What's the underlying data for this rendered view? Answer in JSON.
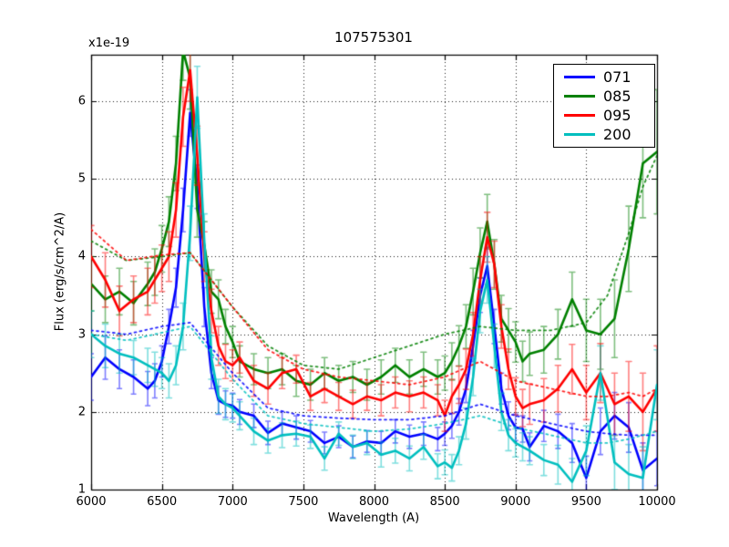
{
  "chart_data": {
    "type": "line",
    "title": "107575301",
    "xlabel": "Wavelength (A)",
    "ylabel": "Flux (erg/s/cm^2/A)",
    "offset_label": "x1e-19",
    "xlim": [
      6000,
      10000
    ],
    "ylim": [
      1,
      6.6
    ],
    "xticks": [
      "6000",
      "6500",
      "7000",
      "7500",
      "8000",
      "8500",
      "9000",
      "9500",
      "10000"
    ],
    "xtick_values": [
      6000,
      6500,
      7000,
      7500,
      8000,
      8500,
      9000,
      9500,
      10000
    ],
    "yticks": [
      "1",
      "2",
      "3",
      "4",
      "5",
      "6"
    ],
    "ytick_values": [
      1,
      2,
      3,
      4,
      5,
      6
    ],
    "grid": true,
    "legend_position": "upper right",
    "x": [
      6000,
      6100,
      6200,
      6300,
      6400,
      6450,
      6500,
      6550,
      6600,
      6650,
      6700,
      6750,
      6800,
      6850,
      6900,
      6950,
      7000,
      7050,
      7150,
      7250,
      7350,
      7450,
      7550,
      7650,
      7750,
      7850,
      7950,
      8050,
      8150,
      8250,
      8350,
      8450,
      8500,
      8550,
      8600,
      8650,
      8700,
      8750,
      8800,
      8850,
      8900,
      8950,
      9000,
      9050,
      9100,
      9200,
      9300,
      9400,
      9500,
      9600,
      9700,
      9800,
      9900,
      10000
    ],
    "series": [
      {
        "name": "071",
        "color": "#0000ff",
        "values": [
          2.45,
          2.7,
          2.55,
          2.45,
          2.3,
          2.4,
          2.65,
          3.1,
          3.6,
          4.6,
          5.85,
          4.9,
          3.35,
          2.5,
          2.15,
          2.1,
          2.08,
          2.0,
          1.95,
          1.73,
          1.85,
          1.8,
          1.75,
          1.6,
          1.68,
          1.55,
          1.62,
          1.6,
          1.75,
          1.68,
          1.72,
          1.65,
          1.72,
          1.82,
          2.0,
          2.3,
          2.85,
          3.5,
          3.88,
          3.1,
          2.3,
          1.95,
          1.8,
          1.78,
          1.55,
          1.82,
          1.75,
          1.6,
          1.15,
          1.75,
          1.95,
          1.8,
          1.25,
          1.4
        ],
        "err": [
          0.3,
          0.28,
          0.25,
          0.22,
          0.22,
          0.22,
          0.2,
          0.22,
          0.25,
          0.28,
          0.3,
          0.28,
          0.25,
          0.2,
          0.18,
          0.17,
          0.16,
          0.16,
          0.15,
          0.15,
          0.15,
          0.15,
          0.14,
          0.14,
          0.14,
          0.14,
          0.14,
          0.15,
          0.15,
          0.15,
          0.15,
          0.15,
          0.15,
          0.16,
          0.17,
          0.18,
          0.2,
          0.22,
          0.24,
          0.22,
          0.2,
          0.18,
          0.17,
          0.17,
          0.18,
          0.2,
          0.22,
          0.25,
          0.28,
          0.3,
          0.3,
          0.32,
          0.35,
          0.35
        ]
      },
      {
        "name": "085",
        "color": "#008000",
        "values": [
          3.65,
          3.45,
          3.55,
          3.4,
          3.65,
          3.8,
          4.1,
          4.45,
          5.2,
          6.65,
          6.3,
          4.6,
          4.15,
          3.55,
          3.45,
          3.1,
          2.9,
          2.65,
          2.55,
          2.5,
          2.55,
          2.4,
          2.35,
          2.5,
          2.4,
          2.45,
          2.35,
          2.45,
          2.6,
          2.45,
          2.55,
          2.45,
          2.5,
          2.65,
          2.85,
          3.1,
          3.55,
          4.05,
          4.45,
          3.9,
          3.2,
          3.05,
          2.9,
          2.65,
          2.75,
          2.8,
          3.0,
          3.45,
          3.05,
          3.0,
          3.2,
          4.1,
          5.2,
          5.35
        ],
        "err": [
          0.35,
          0.3,
          0.3,
          0.28,
          0.28,
          0.3,
          0.3,
          0.32,
          0.35,
          0.38,
          0.4,
          0.35,
          0.3,
          0.28,
          0.25,
          0.22,
          0.2,
          0.2,
          0.2,
          0.2,
          0.2,
          0.2,
          0.2,
          0.2,
          0.2,
          0.2,
          0.2,
          0.22,
          0.22,
          0.22,
          0.22,
          0.22,
          0.22,
          0.24,
          0.26,
          0.28,
          0.3,
          0.32,
          0.35,
          0.32,
          0.3,
          0.28,
          0.26,
          0.26,
          0.28,
          0.3,
          0.32,
          0.35,
          0.4,
          0.45,
          0.5,
          0.55,
          0.7,
          0.8
        ]
      },
      {
        "name": "095",
        "color": "#ff0000",
        "values": [
          4.0,
          3.7,
          3.3,
          3.45,
          3.55,
          3.7,
          3.85,
          4.0,
          4.6,
          5.8,
          6.4,
          5.3,
          4.0,
          3.3,
          2.85,
          2.65,
          2.6,
          2.7,
          2.4,
          2.3,
          2.5,
          2.55,
          2.2,
          2.3,
          2.2,
          2.1,
          2.2,
          2.15,
          2.25,
          2.2,
          2.25,
          2.15,
          1.95,
          2.2,
          2.35,
          2.55,
          3.0,
          3.7,
          4.25,
          3.9,
          3.1,
          2.55,
          2.2,
          2.05,
          2.1,
          2.15,
          2.3,
          2.55,
          2.25,
          2.5,
          2.1,
          2.2,
          2.0,
          2.3
        ],
        "err": [
          0.4,
          0.35,
          0.32,
          0.3,
          0.3,
          0.3,
          0.3,
          0.32,
          0.35,
          0.38,
          0.4,
          0.38,
          0.32,
          0.28,
          0.25,
          0.22,
          0.2,
          0.2,
          0.2,
          0.2,
          0.2,
          0.18,
          0.18,
          0.18,
          0.18,
          0.18,
          0.18,
          0.2,
          0.2,
          0.2,
          0.2,
          0.2,
          0.2,
          0.22,
          0.24,
          0.26,
          0.28,
          0.3,
          0.32,
          0.3,
          0.28,
          0.26,
          0.24,
          0.24,
          0.26,
          0.28,
          0.3,
          0.32,
          0.35,
          0.38,
          0.4,
          0.45,
          0.5,
          0.55
        ]
      },
      {
        "name": "200",
        "color": "#00bfbf",
        "values": [
          3.0,
          2.85,
          2.75,
          2.7,
          2.6,
          2.55,
          2.5,
          2.4,
          2.6,
          3.1,
          4.3,
          6.05,
          4.2,
          2.7,
          2.2,
          2.1,
          2.05,
          1.95,
          1.75,
          1.63,
          1.7,
          1.72,
          1.68,
          1.4,
          1.72,
          1.55,
          1.6,
          1.45,
          1.5,
          1.4,
          1.55,
          1.3,
          1.35,
          1.28,
          1.5,
          1.85,
          2.45,
          3.3,
          3.7,
          2.85,
          2.0,
          1.7,
          1.6,
          1.55,
          1.5,
          1.38,
          1.32,
          1.1,
          1.5,
          2.5,
          1.35,
          1.2,
          1.15,
          2.35
        ],
        "err": [
          0.3,
          0.28,
          0.25,
          0.22,
          0.22,
          0.22,
          0.2,
          0.22,
          0.25,
          0.3,
          0.35,
          0.4,
          0.35,
          0.28,
          0.22,
          0.2,
          0.18,
          0.18,
          0.17,
          0.16,
          0.16,
          0.16,
          0.15,
          0.15,
          0.15,
          0.15,
          0.15,
          0.16,
          0.16,
          0.16,
          0.16,
          0.16,
          0.16,
          0.17,
          0.18,
          0.2,
          0.24,
          0.28,
          0.3,
          0.28,
          0.24,
          0.2,
          0.18,
          0.18,
          0.18,
          0.2,
          0.25,
          0.3,
          0.32,
          0.35,
          0.35,
          0.38,
          0.4,
          0.45
        ]
      }
    ],
    "smoothed_x": [
      6000,
      6250,
      6500,
      6700,
      7000,
      7250,
      7500,
      7750,
      8000,
      8250,
      8500,
      8750,
      9000,
      9250,
      9500,
      9650,
      9800,
      9900,
      10000
    ],
    "smoothed_series": [
      {
        "name": "071-smoothed",
        "color": "#0000ff",
        "values": [
          3.05,
          3.0,
          3.1,
          3.15,
          2.5,
          2.05,
          1.95,
          1.92,
          1.9,
          1.9,
          1.95,
          2.1,
          1.95,
          1.85,
          1.75,
          1.72,
          1.7,
          1.7,
          1.7
        ]
      },
      {
        "name": "085-smoothed",
        "color": "#008000",
        "values": [
          4.2,
          3.95,
          4.0,
          4.05,
          3.35,
          2.85,
          2.6,
          2.55,
          2.7,
          2.85,
          3.0,
          3.1,
          3.05,
          3.05,
          3.15,
          3.5,
          4.3,
          4.9,
          5.3
        ]
      },
      {
        "name": "095-smoothed",
        "color": "#ff0000",
        "values": [
          4.35,
          3.95,
          4.02,
          4.05,
          3.35,
          2.8,
          2.55,
          2.45,
          2.4,
          2.35,
          2.45,
          2.65,
          2.4,
          2.3,
          2.2,
          2.2,
          2.25,
          2.2,
          2.3
        ]
      },
      {
        "name": "200-smoothed",
        "color": "#00bfbf",
        "values": [
          3.0,
          2.92,
          3.02,
          3.1,
          2.42,
          1.95,
          1.85,
          1.8,
          1.75,
          1.78,
          1.85,
          1.95,
          1.8,
          1.7,
          1.6,
          1.6,
          1.65,
          1.7,
          1.75
        ]
      }
    ]
  }
}
